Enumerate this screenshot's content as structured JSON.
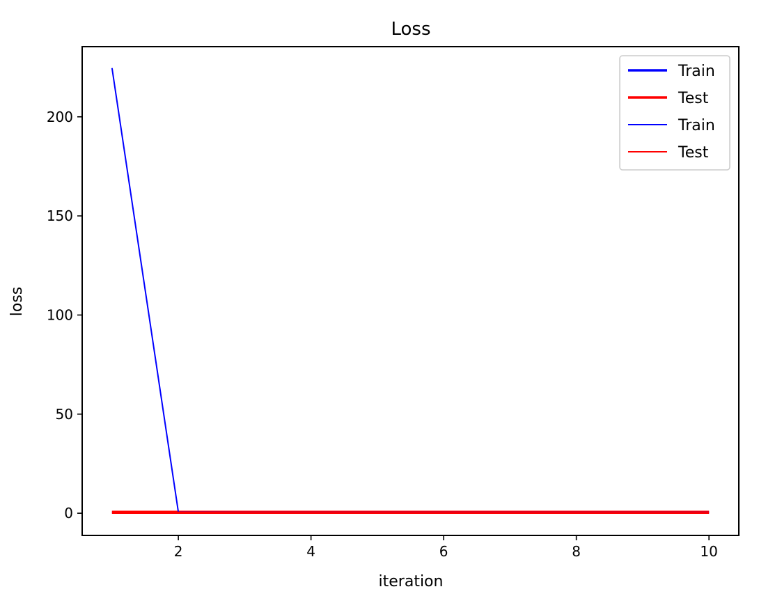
{
  "chart_data": {
    "type": "line",
    "title": "Loss",
    "xlabel": "iteration",
    "ylabel": "loss",
    "xlim": [
      0.55,
      10.45
    ],
    "ylim": [
      -11.2,
      235.4
    ],
    "xticks": [
      2,
      4,
      6,
      8,
      10
    ],
    "yticks": [
      0,
      50,
      100,
      150,
      200
    ],
    "grid": false,
    "legend_position": "top-right",
    "x": [
      1,
      2,
      3,
      4,
      5,
      6,
      7,
      8,
      9,
      10
    ],
    "series": [
      {
        "name": "Train",
        "color": "#0000ff",
        "thick": true,
        "values": [
          0.5,
          0.5,
          0.5,
          0.5,
          0.5,
          0.5,
          0.5,
          0.5,
          0.5,
          0.5
        ]
      },
      {
        "name": "Test",
        "color": "#ff0000",
        "thick": true,
        "values": [
          0.5,
          0.5,
          0.5,
          0.5,
          0.5,
          0.5,
          0.5,
          0.5,
          0.5,
          0.5
        ]
      },
      {
        "name": "Train",
        "color": "#0000ff",
        "thick": false,
        "values": [
          224.6,
          0.6,
          0.5,
          0.5,
          0.5,
          0.5,
          0.5,
          0.5,
          0.5,
          0.5
        ]
      },
      {
        "name": "Test",
        "color": "#ff0000",
        "thick": false,
        "values": [
          0.5,
          0.5,
          0.5,
          0.5,
          0.5,
          0.5,
          0.5,
          0.5,
          0.5,
          0.5
        ]
      }
    ]
  }
}
